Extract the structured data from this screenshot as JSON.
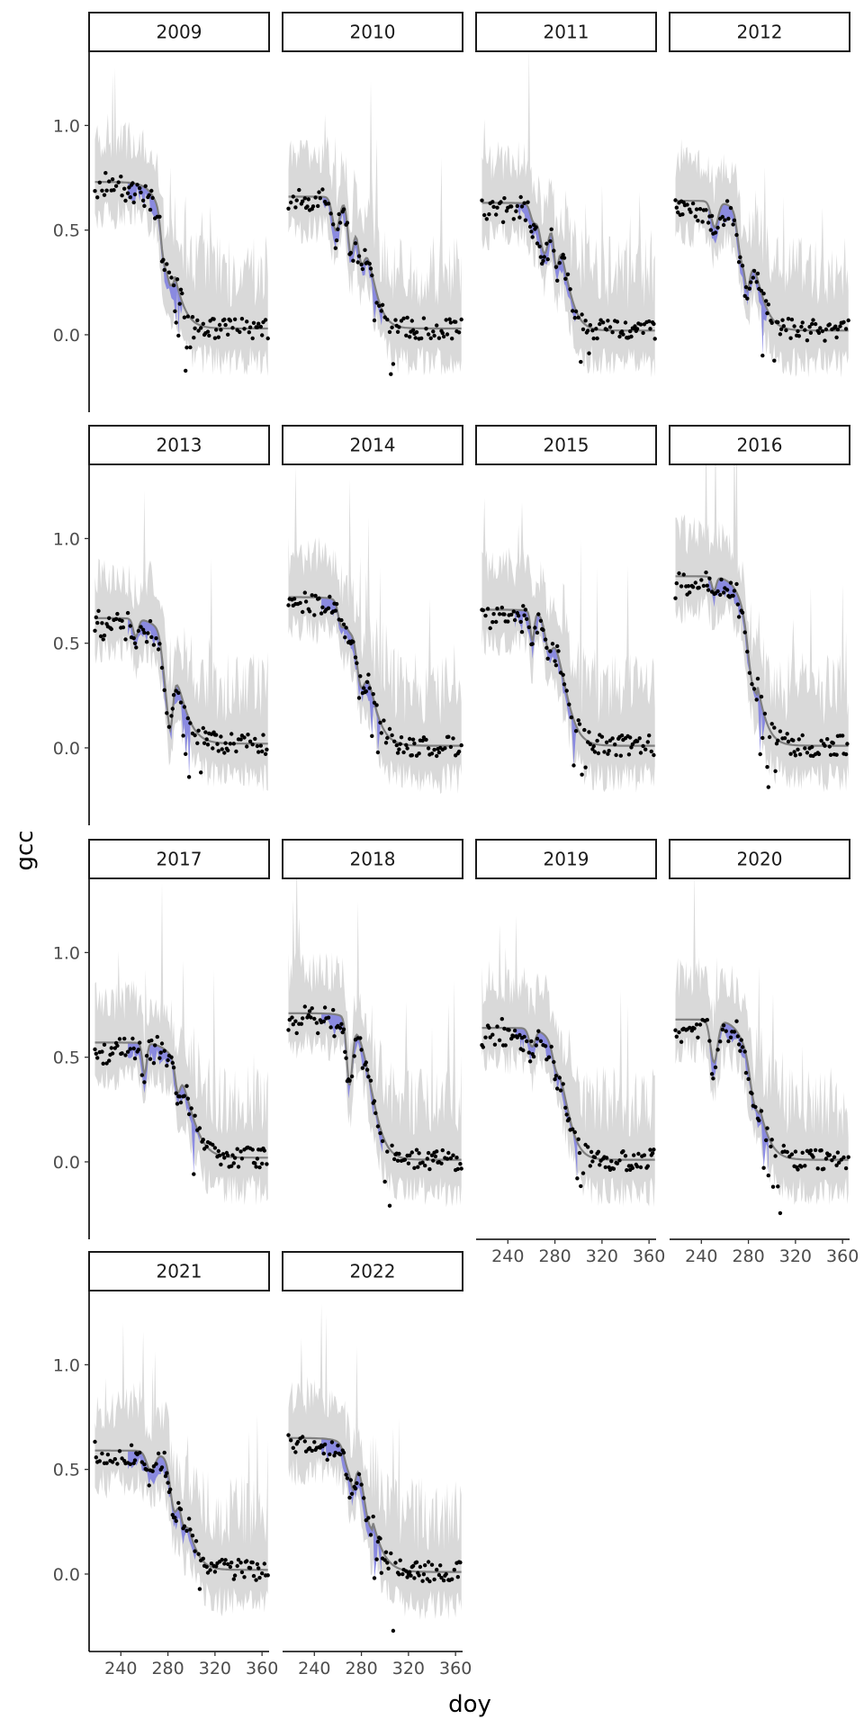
{
  "chart_data": {
    "type": "line",
    "layout": "faceted",
    "facet_variable": "year",
    "xlabel": "doy",
    "ylabel": "gcc",
    "xlim": [
      213,
      366
    ],
    "ylim": [
      -0.37,
      1.35
    ],
    "x_ticks": [
      240,
      280,
      320,
      360
    ],
    "y_ticks": [
      0.0,
      0.5,
      1.0
    ],
    "y_tick_labels": [
      "0.0",
      "0.5",
      "1.0"
    ],
    "legend": "none",
    "grid": false,
    "colors": {
      "ribbon": "#d9d9d9",
      "difference_band": "#7b7be0",
      "fit_line": "#808080",
      "points": "#000000",
      "strip_border": "#1a1a1a"
    },
    "layers": [
      "grey prediction ribbon",
      "blue band between fitted curve and observations",
      "grey fitted curve",
      "black observation points"
    ],
    "panels": [
      {
        "label": "2009",
        "high": 0.73,
        "low": 0.03,
        "mid": 282,
        "k": 0.15
      },
      {
        "label": "2010",
        "high": 0.66,
        "low": 0.03,
        "mid": 287,
        "k": 0.17
      },
      {
        "label": "2011",
        "high": 0.63,
        "low": 0.02,
        "mid": 288,
        "k": 0.17
      },
      {
        "label": "2012",
        "high": 0.64,
        "low": 0.02,
        "mid": 285,
        "k": 0.15
      },
      {
        "label": "2013",
        "high": 0.62,
        "low": 0.02,
        "mid": 288,
        "k": 0.14
      },
      {
        "label": "2014",
        "high": 0.72,
        "low": 0.01,
        "mid": 285,
        "k": 0.15
      },
      {
        "label": "2015",
        "high": 0.66,
        "low": 0.01,
        "mid": 287,
        "k": 0.16
      },
      {
        "label": "2016",
        "high": 0.82,
        "low": 0.01,
        "mid": 284,
        "k": 0.16
      },
      {
        "label": "2017",
        "high": 0.57,
        "low": 0.02,
        "mid": 297,
        "k": 0.14
      },
      {
        "label": "2018",
        "high": 0.71,
        "low": 0.01,
        "mid": 288,
        "k": 0.16
      },
      {
        "label": "2019",
        "high": 0.64,
        "low": 0.01,
        "mid": 288,
        "k": 0.17
      },
      {
        "label": "2020",
        "high": 0.68,
        "low": 0.01,
        "mid": 286,
        "k": 0.15
      },
      {
        "label": "2021",
        "high": 0.59,
        "low": 0.02,
        "mid": 294,
        "k": 0.16
      },
      {
        "label": "2022",
        "high": 0.65,
        "low": 0.01,
        "mid": 286,
        "k": 0.14
      }
    ]
  }
}
